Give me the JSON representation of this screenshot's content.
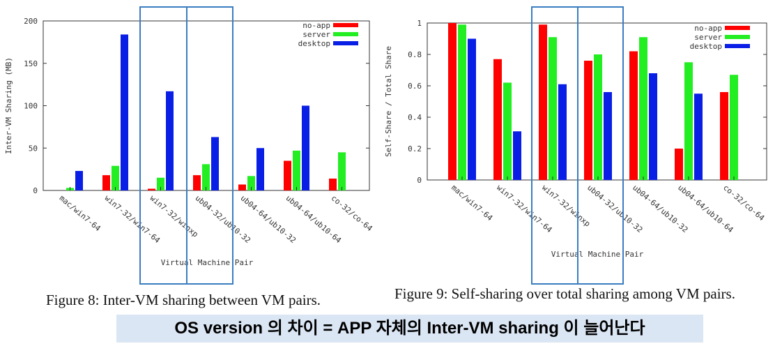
{
  "chart_data": [
    {
      "type": "bar",
      "caption": "Figure 8: Inter-VM sharing between VM pairs.",
      "xlabel": "Virtual Machine Pair",
      "ylabel": "Inter-VM Sharing (MB)",
      "ylim": [
        0,
        200
      ],
      "yticks": [
        "0",
        "50",
        "100",
        "150",
        "200"
      ],
      "categories": [
        "mac/win7-64",
        "win7-32/win7-64",
        "win7-32/winxp",
        "ub04-32/ub10-32",
        "ub04-64/ub10-32",
        "ub04-64/ub10-64",
        "co-32/co-64"
      ],
      "series": [
        {
          "name": "no-app",
          "color": "#ff0000",
          "values": [
            0,
            18,
            2,
            18,
            7,
            35,
            14
          ]
        },
        {
          "name": "server",
          "color": "#22ee22",
          "values": [
            3,
            29,
            15,
            31,
            17,
            47,
            45
          ]
        },
        {
          "name": "desktop",
          "color": "#0a1fe6",
          "values": [
            23,
            184,
            117,
            63,
            50,
            100,
            0
          ]
        }
      ],
      "legend_position": "top-right",
      "grid": false
    },
    {
      "type": "bar",
      "caption": "Figure 9: Self-sharing over total sharing among VM pairs.",
      "xlabel": "Virtual Machine Pair",
      "ylabel": "Self-Share / Total Share",
      "ylim": [
        0,
        1
      ],
      "yticks": [
        "0",
        "0.2",
        "0.4",
        "0.6",
        "0.8",
        "1"
      ],
      "categories": [
        "mac/win7-64",
        "win7-32/win7-64",
        "win7-32/winxp",
        "ub04-32/ub10-32",
        "ub04-64/ub10-32",
        "ub04-64/ub10-64",
        "co-32/co-64"
      ],
      "series": [
        {
          "name": "no-app",
          "color": "#ff0000",
          "values": [
            1.0,
            0.77,
            0.99,
            0.76,
            0.82,
            0.2,
            0.56
          ]
        },
        {
          "name": "server",
          "color": "#22ee22",
          "values": [
            0.99,
            0.62,
            0.91,
            0.8,
            0.91,
            0.75,
            0.67
          ]
        },
        {
          "name": "desktop",
          "color": "#0a1fe6",
          "values": [
            0.9,
            0.31,
            0.61,
            0.56,
            0.68,
            0.55,
            0
          ]
        }
      ],
      "legend_position": "top-right",
      "grid": false
    }
  ],
  "banner": {
    "text": "OS version 의 차이 = APP 자체의 Inter-VM sharing 이 늘어난다",
    "background": "#dbe6f4"
  },
  "highlight_color": "#3a7dc0"
}
